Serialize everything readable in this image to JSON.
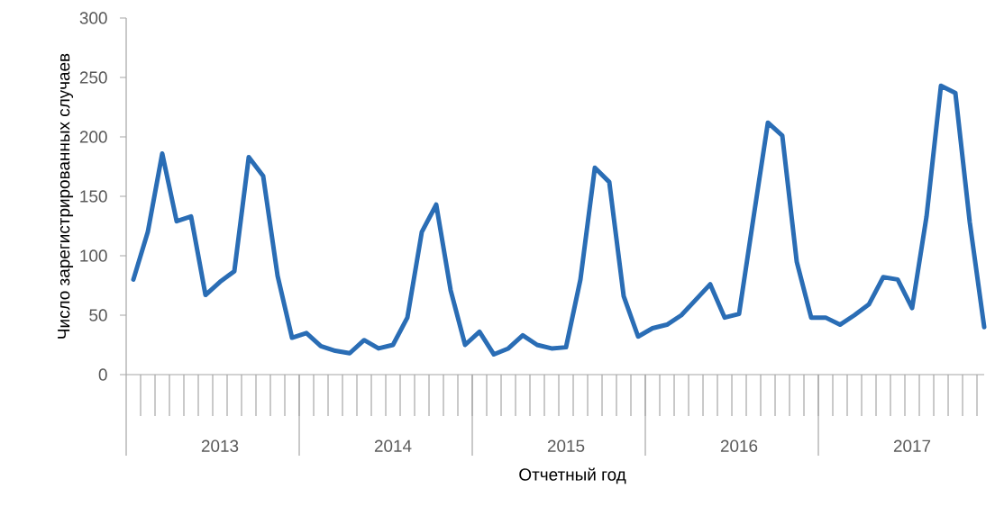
{
  "chart_data": {
    "type": "line",
    "xlabel": "Отчетный год",
    "ylabel": "Число зарегистрированных случаев",
    "categories": [
      null,
      null,
      null,
      null,
      null,
      null,
      "2013",
      null,
      null,
      null,
      null,
      null,
      null,
      null,
      null,
      null,
      null,
      null,
      "2014",
      null,
      null,
      null,
      null,
      null,
      null,
      null,
      null,
      null,
      null,
      null,
      "2015",
      null,
      null,
      null,
      null,
      null,
      null,
      null,
      null,
      null,
      null,
      null,
      "2016",
      null,
      null,
      null,
      null,
      null,
      null,
      null,
      null,
      null,
      null,
      null,
      "2017",
      null,
      null,
      null,
      null,
      null
    ],
    "series": [
      {
        "color": "#2a6db5",
        "values": [
          80,
          120,
          186,
          129,
          133,
          67,
          78,
          87,
          183,
          167,
          83,
          31,
          35,
          24,
          20,
          18,
          29,
          22,
          25,
          48,
          120,
          143,
          71,
          25,
          36,
          17,
          22,
          33,
          25,
          22,
          23,
          80,
          174,
          162,
          66,
          32,
          39,
          42,
          50,
          63,
          76,
          48,
          51,
          132,
          212,
          201,
          95,
          48,
          48,
          42,
          50,
          59,
          82,
          80,
          56,
          133,
          243,
          237,
          128,
          40
        ]
      }
    ],
    "ylim": [
      0,
      300
    ],
    "yticks": [
      0,
      50,
      100,
      150,
      200,
      250,
      300
    ],
    "grid": false,
    "marker": "none",
    "line_style": "solid"
  }
}
